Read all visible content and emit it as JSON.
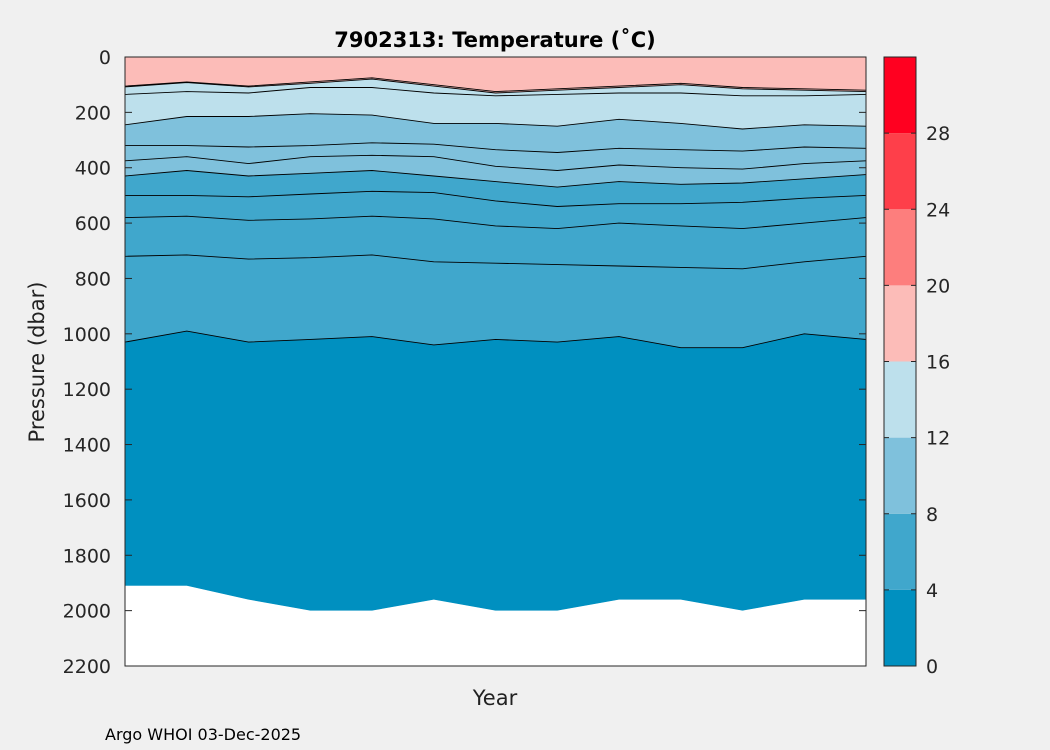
{
  "chart_data": {
    "type": "contourf",
    "title": "7902313:  Temperature (˚C)",
    "xlabel": "Year",
    "ylabel": "Pressure (dbar)",
    "ylim": [
      0,
      2200
    ],
    "y_ticks": [
      0,
      200,
      400,
      600,
      800,
      1000,
      1200,
      1400,
      1600,
      1800,
      2000,
      2200
    ],
    "x_ticks": [],
    "profile_index": [
      0,
      1,
      2,
      3,
      4,
      5,
      6,
      7,
      8,
      9,
      10,
      11,
      12
    ],
    "max_pressure": [
      1910,
      1910,
      1960,
      2000,
      2000,
      1960,
      2000,
      2000,
      1960,
      1960,
      2000,
      1960,
      1960
    ],
    "isotherm_depths": [
      {
        "level": 18,
        "color": "#fcbcb8",
        "depths": [
          105,
          90,
          105,
          90,
          75,
          100,
          125,
          115,
          105,
          95,
          110,
          115,
          120
        ]
      },
      {
        "level": 16,
        "color": "#bde0ec",
        "depths": [
          108,
          92,
          108,
          95,
          80,
          105,
          130,
          120,
          110,
          100,
          115,
          120,
          125
        ]
      },
      {
        "level": 14,
        "color": "#bde0ec",
        "depths": [
          135,
          125,
          130,
          110,
          110,
          130,
          140,
          135,
          130,
          130,
          140,
          140,
          135
        ]
      },
      {
        "level": 12,
        "color": "#7fc1dc",
        "depths": [
          245,
          215,
          215,
          205,
          210,
          240,
          240,
          250,
          225,
          240,
          260,
          245,
          250
        ]
      },
      {
        "level": 11,
        "color": "#7fc1dc",
        "depths": [
          320,
          320,
          325,
          320,
          310,
          315,
          335,
          345,
          330,
          335,
          340,
          325,
          330
        ]
      },
      {
        "level": 10,
        "color": "#7fc1dc",
        "depths": [
          375,
          360,
          385,
          360,
          355,
          360,
          395,
          410,
          390,
          400,
          405,
          385,
          375
        ]
      },
      {
        "level": 9,
        "color": "#40a7cc",
        "depths": [
          430,
          410,
          430,
          420,
          410,
          430,
          450,
          470,
          450,
          460,
          455,
          440,
          425
        ]
      },
      {
        "level": 8,
        "color": "#40a7cc",
        "depths": [
          500,
          500,
          505,
          495,
          485,
          490,
          520,
          540,
          530,
          530,
          525,
          510,
          500
        ]
      },
      {
        "level": 7,
        "color": "#40a7cc",
        "depths": [
          580,
          575,
          590,
          585,
          575,
          585,
          610,
          620,
          600,
          610,
          620,
          600,
          580
        ]
      },
      {
        "level": 6,
        "color": "#40a7cc",
        "depths": [
          720,
          715,
          730,
          725,
          715,
          740,
          745,
          750,
          755,
          760,
          765,
          740,
          720
        ]
      },
      {
        "level": 4,
        "color": "#0090c0",
        "depths": [
          1030,
          990,
          1030,
          1020,
          1010,
          1040,
          1020,
          1030,
          1010,
          1050,
          1050,
          1000,
          1020
        ]
      }
    ],
    "colorbar": {
      "range": [
        0,
        32
      ],
      "tick_labels": [
        "0",
        "4",
        "8",
        "12",
        "16",
        "20",
        "24",
        "28"
      ],
      "bins": [
        {
          "from": 0,
          "to": 4,
          "color": "#0090c0"
        },
        {
          "from": 4,
          "to": 8,
          "color": "#40a7cc"
        },
        {
          "from": 8,
          "to": 12,
          "color": "#7fc1dc"
        },
        {
          "from": 12,
          "to": 16,
          "color": "#bde0ec"
        },
        {
          "from": 16,
          "to": 20,
          "color": "#fcbcb8"
        },
        {
          "from": 20,
          "to": 24,
          "color": "#fd7e7d"
        },
        {
          "from": 24,
          "to": 28,
          "color": "#fe3f4a"
        },
        {
          "from": 28,
          "to": 32,
          "color": "#ff0020"
        }
      ]
    }
  },
  "footer": "Argo WHOI 03-Dec-2025"
}
